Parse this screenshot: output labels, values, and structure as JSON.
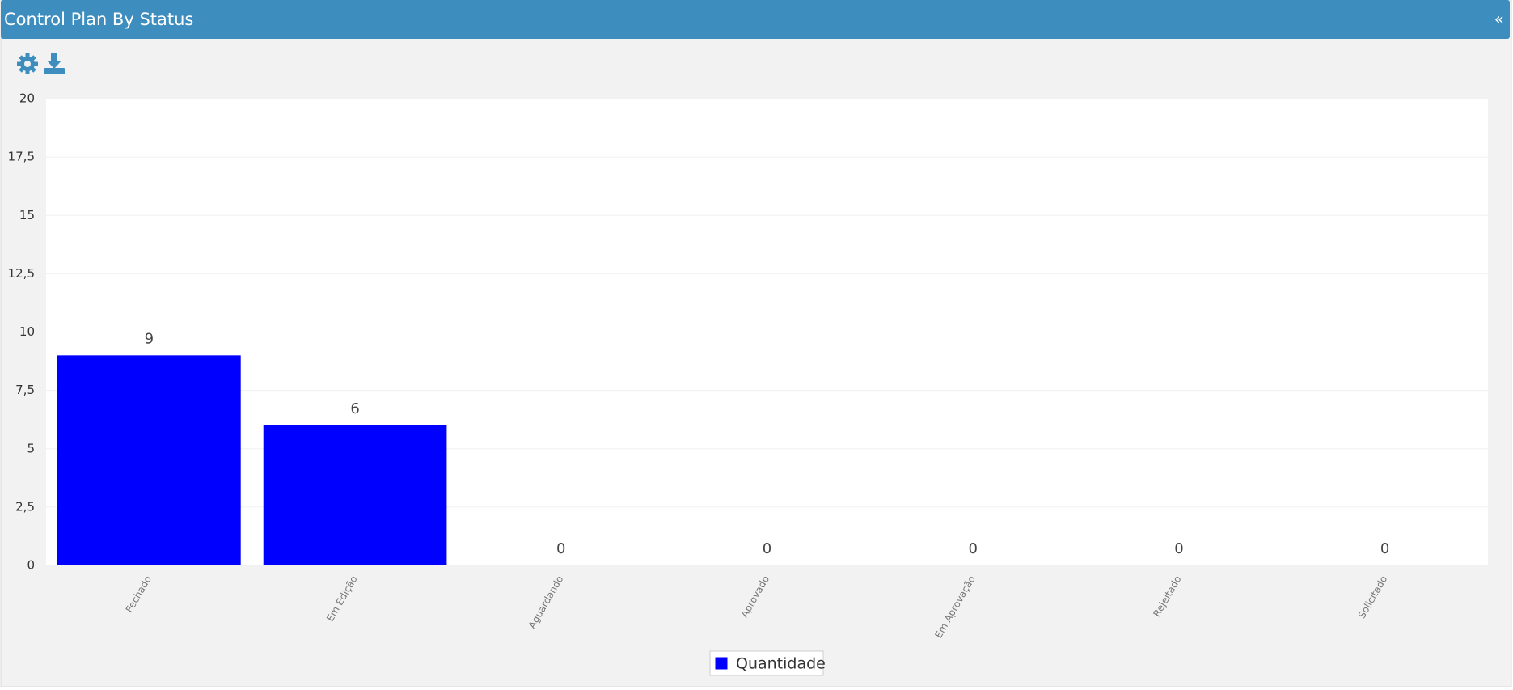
{
  "panel": {
    "collapse": "«"
  },
  "chart_data": {
    "type": "bar",
    "title": "Control Plan By Status",
    "categories": [
      "Fechado",
      "Em Edição",
      "Aguardando",
      "Aprovado",
      "Em Aprovação",
      "Rejeitado",
      "Solicitado"
    ],
    "series": [
      {
        "name": "Quantidade",
        "color": "#0000ff",
        "values": [
          9,
          6,
          0,
          0,
          0,
          0,
          0
        ]
      }
    ],
    "ylim": [
      0,
      20
    ],
    "yticks": [
      0,
      {
        "value": 2.5,
        "label": "2,5"
      },
      5,
      {
        "value": 7.5,
        "label": "7,5"
      },
      10,
      {
        "value": 12.5,
        "label": "12,5"
      },
      15,
      {
        "value": 17.5,
        "label": "17,5"
      },
      20
    ],
    "grid": true,
    "legend": "bottom"
  }
}
